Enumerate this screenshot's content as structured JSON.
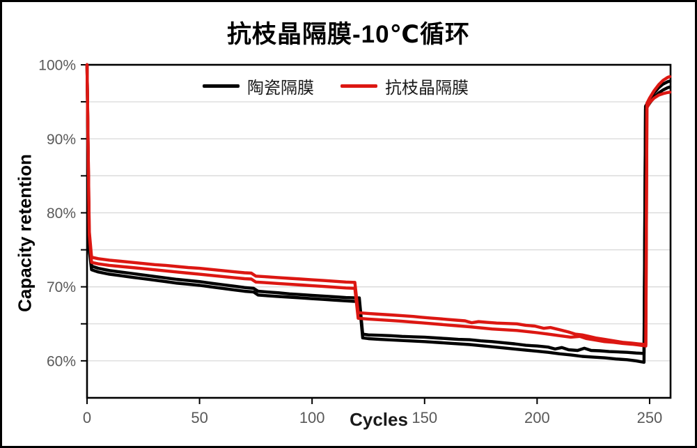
{
  "figure": {
    "title": "抗枝晶隔膜-10℃循环"
  },
  "legend": {
    "items": [
      {
        "label": "陶瓷隔膜",
        "color": "#000000"
      },
      {
        "label": "抗枝晶隔膜",
        "color": "#dc1712"
      }
    ]
  },
  "axes": {
    "x_title": "Cycles",
    "y_title": "Capacity retention"
  },
  "colors": {
    "ceramic": "#000000",
    "anti_dendrite": "#dc1712",
    "gridline": "#d9d9d9",
    "axis_frame": "#000000",
    "tick_label": "#595959"
  },
  "chart_data": {
    "type": "line",
    "title": "抗枝晶隔膜-10℃循环",
    "xlabel": "Cycles",
    "ylabel": "Capacity retention",
    "xlim": [
      0,
      259.3
    ],
    "ylim": [
      55,
      100
    ],
    "x_ticks": [
      0,
      50,
      100,
      150,
      200,
      250
    ],
    "y_ticks_labeled": [
      60,
      70,
      80,
      90,
      100
    ],
    "y_ticks_minor": [
      60,
      65,
      70,
      75,
      80,
      85,
      90,
      95,
      100
    ],
    "y_gridlines": [
      60,
      65,
      70,
      75,
      80,
      85,
      90,
      95
    ],
    "y_tick_suffix": "%",
    "grid": "horizontal-only",
    "legend_position": "top-center-inside",
    "series": [
      {
        "id": "ceramic-a",
        "name": "陶瓷隔膜",
        "color": "#000000",
        "points": [
          [
            0,
            100
          ],
          [
            1,
            75.5
          ],
          [
            2,
            72.8
          ],
          [
            5,
            72.5
          ],
          [
            10,
            72.2
          ],
          [
            15,
            72.0
          ],
          [
            20,
            71.8
          ],
          [
            25,
            71.6
          ],
          [
            30,
            71.4
          ],
          [
            35,
            71.2
          ],
          [
            40,
            71.0
          ],
          [
            45,
            70.85
          ],
          [
            50,
            70.7
          ],
          [
            55,
            70.5
          ],
          [
            60,
            70.3
          ],
          [
            65,
            70.1
          ],
          [
            70,
            69.9
          ],
          [
            74,
            69.8
          ],
          [
            76,
            69.4
          ],
          [
            80,
            69.3
          ],
          [
            85,
            69.2
          ],
          [
            90,
            69.05
          ],
          [
            95,
            68.95
          ],
          [
            100,
            68.85
          ],
          [
            105,
            68.75
          ],
          [
            110,
            68.65
          ],
          [
            115,
            68.55
          ],
          [
            121,
            68.5
          ],
          [
            122.5,
            63.6
          ],
          [
            125,
            63.5
          ],
          [
            130,
            63.45
          ],
          [
            135,
            63.4
          ],
          [
            140,
            63.3
          ],
          [
            145,
            63.25
          ],
          [
            150,
            63.2
          ],
          [
            155,
            63.1
          ],
          [
            160,
            63.0
          ],
          [
            165,
            62.9
          ],
          [
            170,
            62.85
          ],
          [
            175,
            62.7
          ],
          [
            180,
            62.6
          ],
          [
            185,
            62.45
          ],
          [
            190,
            62.3
          ],
          [
            195,
            62.1
          ],
          [
            200,
            62.0
          ],
          [
            205,
            61.85
          ],
          [
            208,
            61.6
          ],
          [
            211,
            61.8
          ],
          [
            214,
            61.5
          ],
          [
            218,
            61.4
          ],
          [
            221,
            61.7
          ],
          [
            224,
            61.4
          ],
          [
            228,
            61.35
          ],
          [
            232,
            61.25
          ],
          [
            236,
            61.2
          ],
          [
            240,
            61.15
          ],
          [
            244,
            61.05
          ],
          [
            247.5,
            61.0
          ],
          [
            248.2,
            94.4
          ],
          [
            250,
            95.3
          ],
          [
            252,
            96.2
          ],
          [
            254,
            96.9
          ],
          [
            256,
            97.4
          ],
          [
            258,
            97.7
          ],
          [
            259,
            97.8
          ]
        ]
      },
      {
        "id": "ceramic-b",
        "name": "陶瓷隔膜",
        "color": "#000000",
        "points": [
          [
            0,
            100
          ],
          [
            1,
            75.0
          ],
          [
            2,
            72.3
          ],
          [
            5,
            72.0
          ],
          [
            10,
            71.7
          ],
          [
            15,
            71.5
          ],
          [
            20,
            71.3
          ],
          [
            25,
            71.1
          ],
          [
            30,
            70.9
          ],
          [
            35,
            70.7
          ],
          [
            40,
            70.5
          ],
          [
            45,
            70.35
          ],
          [
            50,
            70.2
          ],
          [
            55,
            70.0
          ],
          [
            60,
            69.8
          ],
          [
            65,
            69.6
          ],
          [
            70,
            69.4
          ],
          [
            74,
            69.3
          ],
          [
            76,
            68.9
          ],
          [
            80,
            68.8
          ],
          [
            85,
            68.7
          ],
          [
            90,
            68.6
          ],
          [
            95,
            68.5
          ],
          [
            100,
            68.4
          ],
          [
            105,
            68.3
          ],
          [
            110,
            68.2
          ],
          [
            115,
            68.1
          ],
          [
            121,
            68.0
          ],
          [
            122.5,
            63.1
          ],
          [
            125,
            63.0
          ],
          [
            130,
            62.9
          ],
          [
            140,
            62.75
          ],
          [
            150,
            62.6
          ],
          [
            160,
            62.4
          ],
          [
            170,
            62.2
          ],
          [
            180,
            61.9
          ],
          [
            190,
            61.6
          ],
          [
            195,
            61.45
          ],
          [
            200,
            61.3
          ],
          [
            205,
            61.15
          ],
          [
            210,
            60.95
          ],
          [
            215,
            60.8
          ],
          [
            220,
            60.6
          ],
          [
            225,
            60.5
          ],
          [
            230,
            60.4
          ],
          [
            235,
            60.25
          ],
          [
            240,
            60.15
          ],
          [
            244,
            60.0
          ],
          [
            247.5,
            59.8
          ],
          [
            248.2,
            94.0
          ],
          [
            250,
            94.8
          ],
          [
            252,
            95.6
          ],
          [
            254,
            96.2
          ],
          [
            256,
            96.6
          ],
          [
            258,
            96.9
          ],
          [
            259,
            97.0
          ]
        ]
      },
      {
        "id": "anti-dendrite-a",
        "name": "抗枝晶隔膜",
        "color": "#dc1712",
        "points": [
          [
            0,
            100
          ],
          [
            1,
            77.5
          ],
          [
            2,
            74.0
          ],
          [
            5,
            73.8
          ],
          [
            10,
            73.6
          ],
          [
            15,
            73.45
          ],
          [
            20,
            73.3
          ],
          [
            25,
            73.15
          ],
          [
            30,
            73.0
          ],
          [
            35,
            72.9
          ],
          [
            40,
            72.75
          ],
          [
            45,
            72.6
          ],
          [
            50,
            72.5
          ],
          [
            55,
            72.35
          ],
          [
            60,
            72.2
          ],
          [
            65,
            72.05
          ],
          [
            70,
            71.9
          ],
          [
            73,
            71.85
          ],
          [
            75,
            71.45
          ],
          [
            80,
            71.35
          ],
          [
            85,
            71.25
          ],
          [
            90,
            71.15
          ],
          [
            95,
            71.05
          ],
          [
            100,
            70.95
          ],
          [
            105,
            70.85
          ],
          [
            110,
            70.75
          ],
          [
            115,
            70.65
          ],
          [
            119,
            70.6
          ],
          [
            120.5,
            66.5
          ],
          [
            125,
            66.4
          ],
          [
            130,
            66.3
          ],
          [
            135,
            66.2
          ],
          [
            140,
            66.1
          ],
          [
            145,
            66.0
          ],
          [
            148,
            65.9
          ],
          [
            152,
            65.8
          ],
          [
            156,
            65.7
          ],
          [
            160,
            65.6
          ],
          [
            164,
            65.5
          ],
          [
            168,
            65.4
          ],
          [
            171,
            65.15
          ],
          [
            174,
            65.3
          ],
          [
            178,
            65.2
          ],
          [
            182,
            65.1
          ],
          [
            186,
            65.05
          ],
          [
            191,
            65.0
          ],
          [
            195,
            64.8
          ],
          [
            199,
            64.7
          ],
          [
            203,
            64.4
          ],
          [
            206,
            64.5
          ],
          [
            210,
            64.2
          ],
          [
            214,
            63.9
          ],
          [
            217,
            63.6
          ],
          [
            220,
            63.5
          ],
          [
            223,
            63.3
          ],
          [
            226,
            63.1
          ],
          [
            230,
            62.9
          ],
          [
            234,
            62.7
          ],
          [
            238,
            62.5
          ],
          [
            242,
            62.4
          ],
          [
            245,
            62.3
          ],
          [
            248.3,
            62.2
          ],
          [
            248.8,
            94.8
          ],
          [
            250,
            95.5
          ],
          [
            252,
            96.5
          ],
          [
            254,
            97.3
          ],
          [
            256,
            97.9
          ],
          [
            258,
            98.3
          ],
          [
            259,
            98.4
          ]
        ]
      },
      {
        "id": "anti-dendrite-b",
        "name": "抗枝晶隔膜",
        "color": "#dc1712",
        "points": [
          [
            0,
            100
          ],
          [
            1,
            77.0
          ],
          [
            2,
            73.3
          ],
          [
            5,
            73.1
          ],
          [
            10,
            72.9
          ],
          [
            15,
            72.75
          ],
          [
            20,
            72.6
          ],
          [
            25,
            72.45
          ],
          [
            30,
            72.3
          ],
          [
            35,
            72.15
          ],
          [
            40,
            72.0
          ],
          [
            45,
            71.85
          ],
          [
            50,
            71.7
          ],
          [
            55,
            71.55
          ],
          [
            60,
            71.4
          ],
          [
            65,
            71.25
          ],
          [
            70,
            71.1
          ],
          [
            73,
            71.05
          ],
          [
            75,
            70.65
          ],
          [
            80,
            70.55
          ],
          [
            85,
            70.45
          ],
          [
            90,
            70.35
          ],
          [
            95,
            70.25
          ],
          [
            100,
            70.15
          ],
          [
            105,
            70.05
          ],
          [
            110,
            69.95
          ],
          [
            115,
            69.85
          ],
          [
            119,
            69.8
          ],
          [
            120.5,
            65.75
          ],
          [
            125,
            65.65
          ],
          [
            130,
            65.55
          ],
          [
            140,
            65.35
          ],
          [
            150,
            65.1
          ],
          [
            160,
            64.85
          ],
          [
            170,
            64.6
          ],
          [
            180,
            64.3
          ],
          [
            191,
            64.1
          ],
          [
            200,
            63.8
          ],
          [
            205,
            63.6
          ],
          [
            210,
            63.4
          ],
          [
            215,
            63.2
          ],
          [
            219,
            63.3
          ],
          [
            222,
            63.0
          ],
          [
            226,
            62.8
          ],
          [
            230,
            62.6
          ],
          [
            234,
            62.5
          ],
          [
            238,
            62.35
          ],
          [
            242,
            62.25
          ],
          [
            245,
            62.15
          ],
          [
            248.3,
            62.0
          ],
          [
            248.8,
            94.2
          ],
          [
            250,
            94.9
          ],
          [
            252,
            95.5
          ],
          [
            254,
            95.9
          ],
          [
            256,
            96.1
          ],
          [
            258,
            96.25
          ],
          [
            259,
            96.3
          ]
        ]
      }
    ]
  }
}
